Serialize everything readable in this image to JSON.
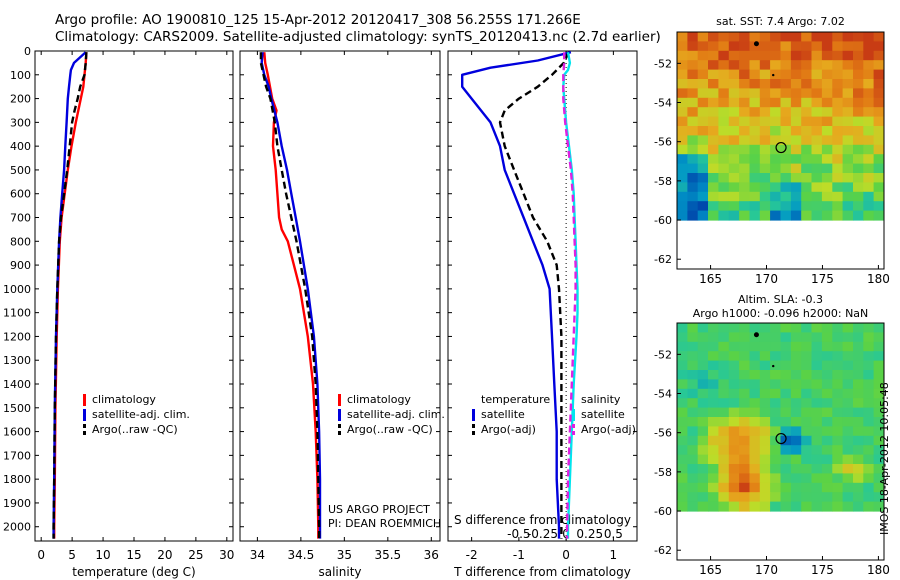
{
  "header": {
    "line1": "Argo profile: AO 1900810_125 15-Apr-2012 20120417_308 56.255S 171.266E",
    "line2": "Climatology: CARS2009. Satellite-adjusted climatology: synTS_20120413.nc (2.7d earlier)"
  },
  "stamp": "IMOS 18-Apr-2012 10:05:48",
  "signature": {
    "line1": "US ARGO PROJECT",
    "line2": "PI: DEAN ROEMMICH"
  },
  "colors": {
    "climatology": "#ff0000",
    "satellite": "#0000dd",
    "argo": "#000000",
    "sal_sat": "#00e5ee",
    "sal_argo": "#e020e0"
  },
  "legends": {
    "temp": [
      "climatology",
      "satellite-adj. clim.",
      "Argo(..raw -QC)"
    ],
    "sal": [
      "climatology",
      "satellite-adj. clim.",
      "Argo(..raw -QC)"
    ],
    "diff_left_title": "temperature",
    "diff_left": [
      "satellite",
      "Argo(-adj)"
    ],
    "diff_right_title": "salinity",
    "diff_right": [
      "satellite",
      "Argo(-adj)"
    ]
  },
  "chart_data": [
    {
      "type": "line",
      "xlabel": "temperature (deg C)",
      "xlim": [
        -1,
        31
      ],
      "xticks": [
        0,
        5,
        10,
        15,
        20,
        25,
        30
      ],
      "ylim": [
        2060,
        0
      ],
      "yticks": [
        0,
        100,
        200,
        300,
        400,
        500,
        600,
        700,
        800,
        900,
        1000,
        1100,
        1200,
        1300,
        1400,
        1500,
        1600,
        1700,
        1800,
        1900,
        2000
      ],
      "series": [
        {
          "key": "clim",
          "name": "climatology",
          "depth": [
            5,
            50,
            100,
            150,
            200,
            300,
            400,
            500,
            600,
            700,
            800,
            1000,
            1200,
            1500,
            1800,
            2000,
            2050
          ],
          "values": [
            7.3,
            7.2,
            7.0,
            6.8,
            6.4,
            5.6,
            4.9,
            4.3,
            3.8,
            3.3,
            3.0,
            2.7,
            2.5,
            2.3,
            2.2,
            2.1,
            2.1
          ]
        },
        {
          "key": "sat",
          "name": "satellite-adj. clim.",
          "depth": [
            5,
            50,
            80,
            100,
            150,
            200,
            300,
            400,
            500,
            600,
            700,
            800,
            1000,
            1200,
            1500,
            1800,
            2000,
            2050
          ],
          "values": [
            7.2,
            5.3,
            4.8,
            4.7,
            4.5,
            4.3,
            4.1,
            3.9,
            3.7,
            3.4,
            3.1,
            2.9,
            2.6,
            2.4,
            2.2,
            2.1,
            2.0,
            2.0
          ]
        },
        {
          "key": "argo",
          "name": "Argo(..raw -QC)",
          "depth": [
            5,
            50,
            100,
            150,
            200,
            250,
            300,
            400,
            500,
            600,
            700,
            800,
            1000,
            1200,
            1500,
            1800,
            2000,
            2050
          ],
          "values": [
            7.3,
            7.2,
            7.0,
            6.3,
            5.9,
            5.4,
            5.0,
            4.6,
            4.2,
            3.7,
            3.2,
            2.9,
            2.6,
            2.4,
            2.2,
            2.1,
            2.0,
            2.0
          ]
        }
      ]
    },
    {
      "type": "line",
      "xlabel": "salinity",
      "xlim": [
        33.8,
        36.1
      ],
      "xticks": [
        34,
        34.5,
        35,
        35.5,
        36
      ],
      "ylim": [
        2060,
        0
      ],
      "series": [
        {
          "key": "clim",
          "name": "climatology",
          "depth": [
            5,
            50,
            100,
            200,
            250,
            300,
            400,
            500,
            600,
            700,
            750,
            800,
            900,
            1000,
            1200,
            1400,
            1600,
            1800,
            2000,
            2050
          ],
          "values": [
            34.08,
            34.09,
            34.12,
            34.17,
            34.22,
            34.19,
            34.18,
            34.21,
            34.23,
            34.25,
            34.28,
            34.35,
            34.42,
            34.49,
            34.58,
            34.64,
            34.67,
            34.69,
            34.7,
            34.7
          ]
        },
        {
          "key": "sat",
          "name": "satellite-adj. clim.",
          "depth": [
            5,
            50,
            100,
            150,
            200,
            300,
            400,
            500,
            600,
            700,
            800,
            1000,
            1200,
            1400,
            1600,
            1800,
            2000,
            2050
          ],
          "values": [
            34.06,
            34.05,
            34.08,
            34.13,
            34.16,
            34.23,
            34.28,
            34.34,
            34.39,
            34.44,
            34.49,
            34.58,
            34.65,
            34.69,
            34.71,
            34.72,
            34.72,
            34.72
          ]
        },
        {
          "key": "argo",
          "name": "Argo(..raw -QC)",
          "depth": [
            5,
            50,
            100,
            150,
            200,
            300,
            400,
            500,
            600,
            700,
            800,
            1000,
            1200,
            1400,
            1600,
            1800,
            2000,
            2050
          ],
          "values": [
            34.04,
            34.04,
            34.07,
            34.1,
            34.15,
            34.2,
            34.23,
            34.28,
            34.33,
            34.39,
            34.45,
            34.55,
            34.63,
            34.67,
            34.69,
            34.7,
            34.71,
            34.71
          ]
        }
      ]
    },
    {
      "type": "line",
      "xlabel": "T difference from climatology",
      "xlabel_top": "S difference from climatology",
      "xlim": [
        -2.5,
        1.5
      ],
      "xticks": [
        -2,
        -1,
        0,
        1
      ],
      "xticks_top": [
        "-0.5",
        "-0.25",
        "0",
        "0.25",
        "0.5"
      ],
      "ylim": [
        2060,
        0
      ],
      "series": [
        {
          "key": "t_sat",
          "name": "satellite",
          "depth": [
            5,
            40,
            70,
            100,
            150,
            200,
            300,
            400,
            500,
            600,
            700,
            800,
            900,
            1000,
            1200,
            1400,
            1600,
            1800,
            2000,
            2050
          ],
          "values": [
            0.1,
            -0.6,
            -1.6,
            -2.2,
            -2.2,
            -2.0,
            -1.6,
            -1.4,
            -1.3,
            -1.1,
            -0.9,
            -0.7,
            -0.5,
            -0.35,
            -0.3,
            -0.25,
            -0.2,
            -0.2,
            -0.15,
            -0.15
          ]
        },
        {
          "key": "t_argo",
          "name": "Argo(-adj)",
          "depth": [
            5,
            50,
            100,
            150,
            200,
            250,
            300,
            400,
            500,
            600,
            700,
            800,
            900,
            1000,
            1200,
            1400,
            1600,
            1800,
            2000,
            2050
          ],
          "values": [
            0.05,
            -0.05,
            -0.3,
            -0.6,
            -1.0,
            -1.3,
            -1.4,
            -1.3,
            -1.1,
            -0.9,
            -0.7,
            -0.4,
            -0.2,
            -0.15,
            -0.1,
            -0.1,
            -0.1,
            -0.1,
            -0.1,
            -0.1
          ]
        },
        {
          "key": "s_sat",
          "name": "satellite",
          "depth": [
            5,
            50,
            80,
            100,
            150,
            200,
            300,
            400,
            500,
            600,
            700,
            800,
            900,
            1000,
            1100,
            1200,
            1400,
            1600,
            1800,
            2000,
            2050
          ],
          "values": [
            0.02,
            0.04,
            0.02,
            -0.02,
            -0.03,
            -0.02,
            0.0,
            0.03,
            0.06,
            0.08,
            0.09,
            0.1,
            0.11,
            0.12,
            0.12,
            0.11,
            0.08,
            0.06,
            0.04,
            0.02,
            0.02
          ]
        },
        {
          "key": "s_argo",
          "name": "Argo(-adj)",
          "depth": [
            5,
            50,
            100,
            200,
            300,
            400,
            500,
            600,
            700,
            800,
            900,
            1000,
            1200,
            1400,
            1600,
            1800,
            2000,
            2050
          ],
          "values": [
            -0.02,
            -0.02,
            -0.03,
            -0.03,
            -0.01,
            0.02,
            0.05,
            0.07,
            0.08,
            0.09,
            0.1,
            0.1,
            0.08,
            0.06,
            0.04,
            0.02,
            0.01,
            0.01
          ]
        }
      ]
    },
    {
      "type": "heatmap",
      "title": "sat. SST: 7.4 Argo: 7.02",
      "xlim": [
        162,
        180.5
      ],
      "ylim": [
        -62.5,
        -50.4
      ],
      "xticks": [
        165,
        170,
        175,
        180
      ],
      "yticks": [
        -52,
        -54,
        -56,
        -58,
        -60,
        -62
      ],
      "field": "sst",
      "marker": [
        171.3,
        -56.3
      ]
    },
    {
      "type": "heatmap",
      "title": "Altim. SLA: -0.3",
      "subtitle": "Argo h1000: -0.096 h2000: NaN",
      "xlim": [
        162,
        180.5
      ],
      "ylim": [
        -62.5,
        -50.4
      ],
      "xticks": [
        165,
        170,
        175,
        180
      ],
      "yticks": [
        -52,
        -54,
        -56,
        -58,
        -60,
        -62
      ],
      "field": "sla",
      "marker": [
        171.3,
        -56.3
      ]
    }
  ]
}
